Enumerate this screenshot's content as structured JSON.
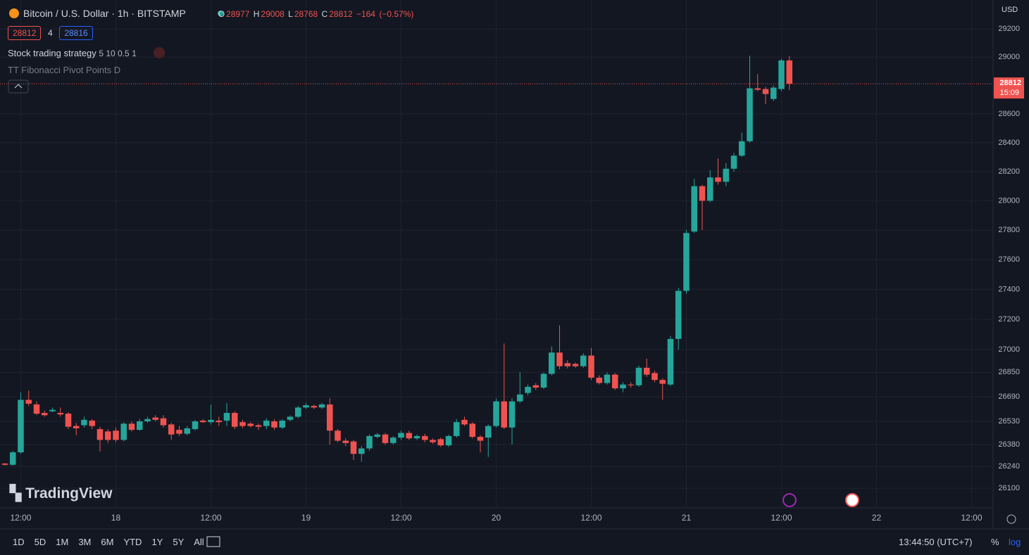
{
  "chart_data": {
    "type": "candlestick",
    "open": [
      26258,
      26250,
      26330,
      26670,
      26640,
      26585,
      26595,
      26585,
      26580,
      26500,
      26505,
      26535,
      26480,
      26465,
      26470,
      26410,
      26515,
      26475,
      26530,
      26555,
      26550,
      26510,
      26475,
      26450,
      26480,
      26535,
      26525,
      26535,
      26535,
      26585,
      26525,
      26515,
      26505,
      26500,
      26530,
      26490,
      26540,
      26560,
      26620,
      26630,
      26620,
      26640,
      26470,
      26405,
      26400,
      26320,
      26355,
      26430,
      26445,
      26390,
      26425,
      26455,
      26420,
      26435,
      26410,
      26415,
      26375,
      26435,
      26540,
      26515,
      26430,
      26425,
      26500,
      26660,
      26490,
      26660,
      26715,
      26765,
      26750,
      26840,
      26980,
      26910,
      26905,
      26890,
      26960,
      26815,
      26780,
      26835,
      26745,
      26770,
      26765,
      26880,
      26845,
      26800,
      26770,
      27070,
      27390,
      27790,
      28100,
      28000,
      28160,
      28130,
      28220,
      28310,
      28410,
      28780,
      28775,
      28705,
      28775,
      28977
    ],
    "high": [
      26262,
      26340,
      26720,
      26730,
      26660,
      26600,
      26620,
      26620,
      26590,
      26520,
      26560,
      26545,
      26495,
      26480,
      26490,
      26525,
      26530,
      26545,
      26560,
      26570,
      26570,
      26520,
      26500,
      26500,
      26540,
      26545,
      26640,
      26560,
      26650,
      26595,
      26540,
      26525,
      26515,
      26550,
      26545,
      26545,
      26570,
      26630,
      26650,
      26640,
      26650,
      26680,
      26480,
      26420,
      26410,
      26370,
      26445,
      26455,
      26455,
      26435,
      26470,
      26470,
      26445,
      26450,
      26420,
      26425,
      26445,
      26545,
      26560,
      26525,
      26440,
      26510,
      26680,
      27040,
      26680,
      26850,
      26770,
      26780,
      26850,
      27020,
      27160,
      26930,
      26915,
      26975,
      27010,
      26830,
      26850,
      26845,
      26785,
      26785,
      26895,
      26940,
      26860,
      26810,
      27090,
      27410,
      27800,
      28150,
      28110,
      28210,
      28290,
      28260,
      28330,
      28470,
      29010,
      28880,
      28790,
      28800,
      28990,
      29008
    ],
    "low": [
      26245,
      26245,
      26320,
      26630,
      26570,
      26560,
      26590,
      26560,
      26480,
      26440,
      26490,
      26480,
      26335,
      26390,
      26395,
      26400,
      26465,
      26470,
      26520,
      26530,
      26490,
      26410,
      26435,
      26440,
      26470,
      26520,
      26510,
      26500,
      26500,
      26480,
      26485,
      26490,
      26475,
      26480,
      26475,
      26480,
      26530,
      26550,
      26610,
      26610,
      26610,
      26380,
      26395,
      26370,
      26280,
      26270,
      26340,
      26420,
      26380,
      26380,
      26410,
      26410,
      26410,
      26395,
      26385,
      26365,
      26365,
      26425,
      26500,
      26420,
      26330,
      26300,
      26490,
      26480,
      26380,
      26650,
      26700,
      26735,
      26740,
      26830,
      26870,
      26875,
      26880,
      26880,
      26800,
      26770,
      26770,
      26735,
      26720,
      26750,
      26755,
      26820,
      26785,
      26670,
      26760,
      27000,
      27370,
      27780,
      27800,
      27990,
      28110,
      28100,
      28200,
      28300,
      28400,
      28760,
      28670,
      28690,
      28760,
      28768
    ],
    "close": [
      26250,
      26330,
      26670,
      26645,
      26580,
      26570,
      26605,
      26575,
      26495,
      26485,
      26540,
      26500,
      26410,
      26410,
      26410,
      26515,
      26475,
      26530,
      26545,
      26540,
      26505,
      26445,
      26450,
      26485,
      26530,
      26525,
      26540,
      26525,
      26585,
      26495,
      26500,
      26500,
      26495,
      26535,
      26490,
      26535,
      26560,
      26620,
      26635,
      26620,
      26640,
      26470,
      26405,
      26390,
      26320,
      26355,
      26435,
      26445,
      26390,
      26425,
      26455,
      26420,
      26435,
      26410,
      26395,
      26375,
      26435,
      26525,
      26510,
      26430,
      26405,
      26500,
      26660,
      26490,
      26660,
      26705,
      26755,
      26750,
      26840,
      26980,
      26890,
      26890,
      26890,
      26960,
      26815,
      26780,
      26835,
      26745,
      26770,
      26765,
      26880,
      26835,
      26800,
      26775,
      27070,
      27390,
      27780,
      28100,
      28000,
      28160,
      28130,
      28220,
      28310,
      28410,
      28780,
      28770,
      28740,
      28785,
      28977,
      28812
    ],
    "colors": {
      "up": "#26a69a",
      "down": "#ef5350"
    },
    "log_scale": true,
    "grid": true,
    "ylim": [
      25975,
      29408
    ],
    "yticks": [
      26100,
      26240,
      26380,
      26530,
      26690,
      26850,
      27000,
      27200,
      27400,
      27600,
      27800,
      28000,
      28200,
      28400,
      28600,
      29000,
      29200
    ],
    "xlim": [
      -0.62,
      124.71
    ],
    "xticks": [
      {
        "value": 2,
        "label": "12:00"
      },
      {
        "value": 14,
        "label": "18"
      },
      {
        "value": 26,
        "label": "12:00"
      },
      {
        "value": 38,
        "label": "19"
      },
      {
        "value": 50,
        "label": "12:00"
      },
      {
        "value": 62,
        "label": "20"
      },
      {
        "value": 74,
        "label": "12:00"
      },
      {
        "value": 86,
        "label": "21"
      },
      {
        "value": 98,
        "label": "12:00"
      },
      {
        "value": 110,
        "label": "22"
      },
      {
        "value": 122,
        "label": "12:00"
      }
    ],
    "currency": "USD",
    "countdown": "15:09"
  },
  "header": {
    "title": "Bitcoin / U.S. Dollar · 1h · BITSTAMP",
    "o": "O",
    "h": "H",
    "l": "L",
    "c": "C",
    "change": "−164",
    "change_pct": "(−0.57%)"
  },
  "quote": {
    "spread": "4",
    "ask": 28816
  },
  "indicators": [
    {
      "name": "Stock trading strategy",
      "params": "5 10 0.5 1"
    },
    {
      "name": "TT Fibonacci Pivot Points D"
    }
  ],
  "logo": "TradingView",
  "toolbar": {
    "ranges": [
      "1D",
      "5D",
      "1M",
      "3M",
      "6M",
      "YTD",
      "1Y",
      "5Y",
      "All"
    ],
    "clock": "13:44:50 (UTC+7)",
    "percent": "%",
    "log": "log"
  }
}
